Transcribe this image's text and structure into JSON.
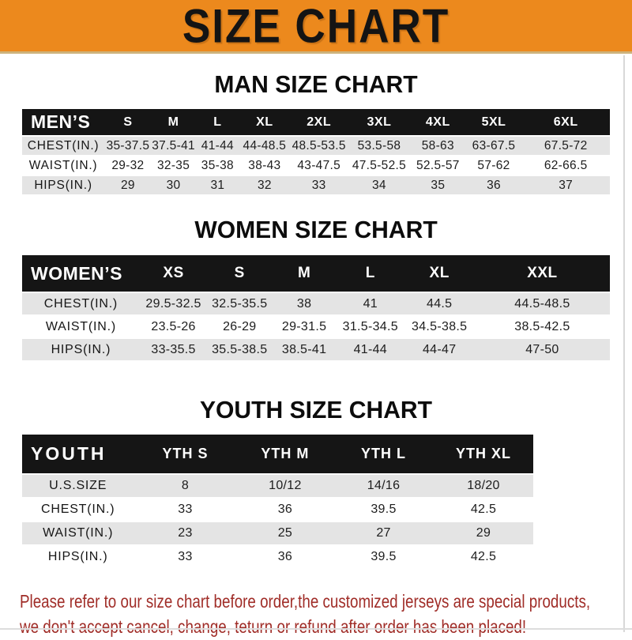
{
  "banner": {
    "title": "SIZE CHART"
  },
  "colors": {
    "banner_bg": "#EC891D",
    "banner_text": "#141414",
    "table_header_bg": "#151515",
    "table_header_text": "#FFFFFF",
    "row_stripe": "#E4E4E4",
    "note_text": "#A02D28"
  },
  "sections": [
    {
      "id": "men",
      "heading": "MAN SIZE CHART",
      "header_label": "MEN’S",
      "columns": [
        "S",
        "M",
        "L",
        "XL",
        "2XL",
        "3XL",
        "4XL",
        "5XL",
        "6XL"
      ],
      "rows": [
        {
          "label": "CHEST(IN.)",
          "values": [
            "35-37.5",
            "37.5-41",
            "41-44",
            "44-48.5",
            "48.5-53.5",
            "53.5-58",
            "58-63",
            "63-67.5",
            "67.5-72"
          ]
        },
        {
          "label": "WAIST(IN.)",
          "values": [
            "29-32",
            "32-35",
            "35-38",
            "38-43",
            "43-47.5",
            "47.5-52.5",
            "52.5-57",
            "57-62",
            "62-66.5"
          ]
        },
        {
          "label": "HIPS(IN.)",
          "values": [
            "29",
            "30",
            "31",
            "32",
            "33",
            "34",
            "35",
            "36",
            "37"
          ]
        }
      ]
    },
    {
      "id": "women",
      "heading": "WOMEN SIZE CHART",
      "header_label": "WOMEN’S",
      "columns": [
        "XS",
        "S",
        "M",
        "L",
        "XL",
        "XXL"
      ],
      "rows": [
        {
          "label": "CHEST(IN.)",
          "values": [
            "29.5-32.5",
            "32.5-35.5",
            "38",
            "41",
            "44.5",
            "44.5-48.5"
          ]
        },
        {
          "label": "WAIST(IN.)",
          "values": [
            "23.5-26",
            "26-29",
            "29-31.5",
            "31.5-34.5",
            "34.5-38.5",
            "38.5-42.5"
          ]
        },
        {
          "label": "HIPS(IN.)",
          "values": [
            "33-35.5",
            "35.5-38.5",
            "38.5-41",
            "41-44",
            "44-47",
            "47-50"
          ]
        }
      ]
    },
    {
      "id": "youth",
      "heading": "YOUTH SIZE CHART",
      "header_label": "YOUTH",
      "columns": [
        "YTH S",
        "YTH M",
        "YTH L",
        "YTH XL"
      ],
      "rows": [
        {
          "label": "U.S.SIZE",
          "values": [
            "8",
            "10/12",
            "14/16",
            "18/20"
          ]
        },
        {
          "label": "CHEST(IN.)",
          "values": [
            "33",
            "36",
            "39.5",
            "42.5"
          ]
        },
        {
          "label": "WAIST(IN.)",
          "values": [
            "23",
            "25",
            "27",
            "29"
          ]
        },
        {
          "label": "HIPS(IN.)",
          "values": [
            "33",
            "36",
            "39.5",
            "42.5"
          ]
        }
      ]
    }
  ],
  "footer_note": {
    "lines": [
      "Please refer to our size chart before order,the customized jerseys are special products,",
      "we don't accept cancel, change, teturn or refund after order has been placed!"
    ]
  }
}
